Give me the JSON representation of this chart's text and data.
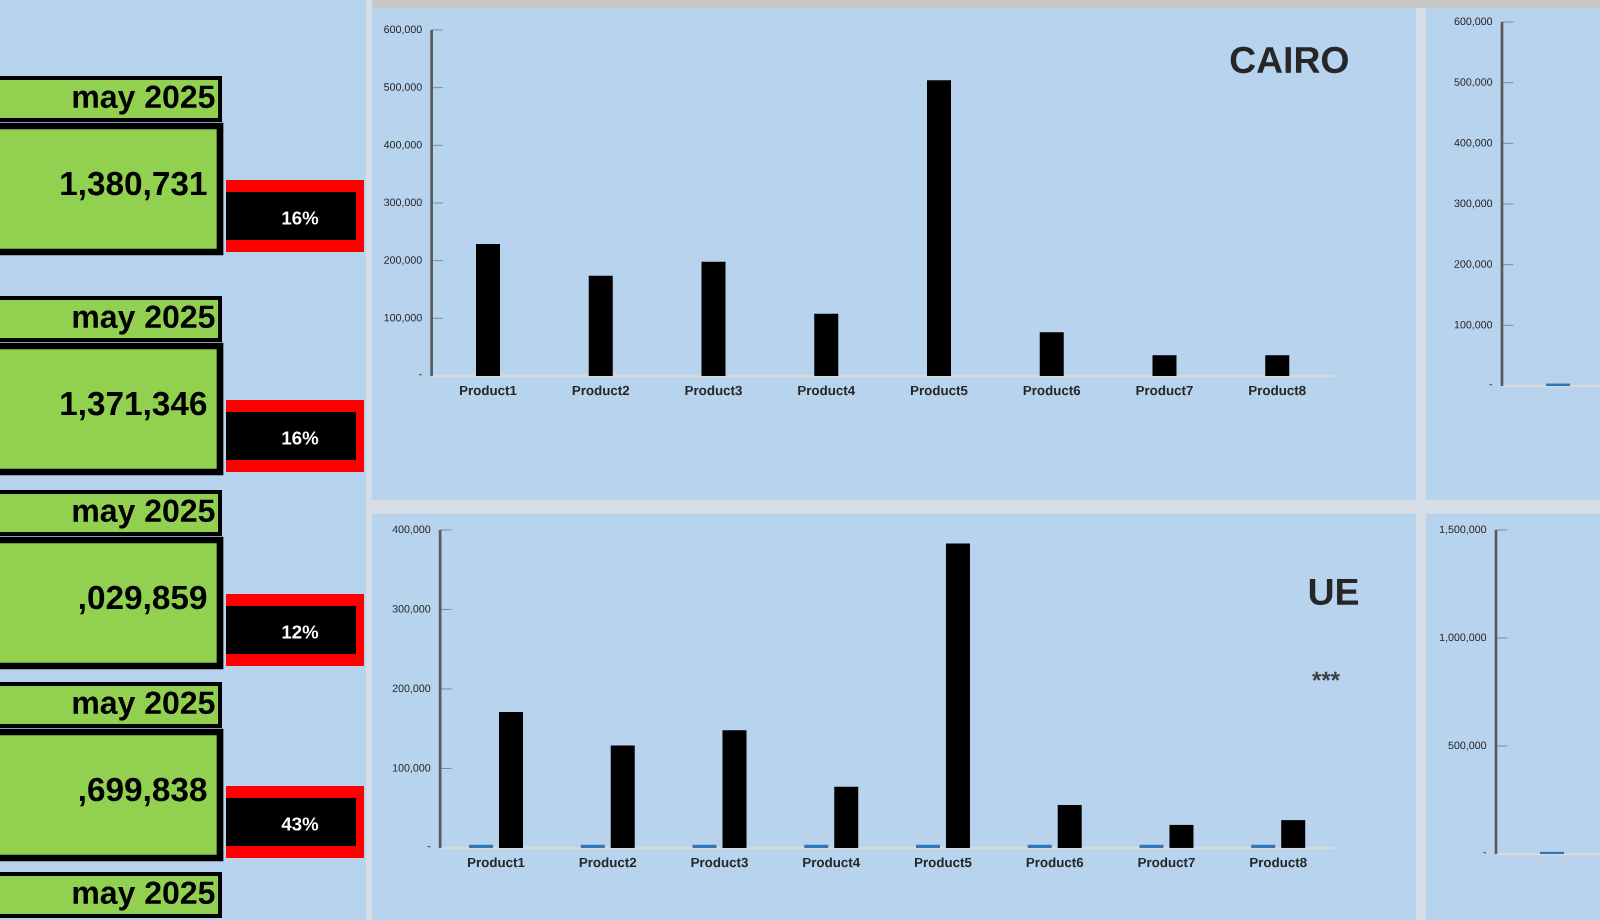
{
  "chart_data": [
    {
      "type": "other",
      "annotations": [
        "may 2025",
        "1,380,731",
        "16%",
        "may 2025",
        "1,371,346",
        "16%",
        "may 2025",
        ",029,859",
        "12%",
        "may 2025",
        ",699,838",
        "43%",
        "may 2025"
      ]
    },
    {
      "type": "bar",
      "title": "CAIRO",
      "categories": [
        "Product1",
        "Product2",
        "Product3",
        "Product4",
        "Product5",
        "Product6",
        "Product7",
        "Product8"
      ],
      "series": [
        {
          "color": "#000000",
          "values": [
            229000,
            174000,
            198000,
            108000,
            513000,
            76000,
            36000,
            36000
          ]
        }
      ],
      "ylim": [
        0,
        600000
      ],
      "yticks": [
        {
          "value": 0,
          "label": "-"
        },
        {
          "value": 100000,
          "label": "100,000"
        },
        {
          "value": 200000,
          "label": "200,000"
        },
        {
          "value": 300000,
          "label": "300,000"
        },
        {
          "value": 400000,
          "label": "400,000"
        },
        {
          "value": 500000,
          "label": "500,000"
        },
        {
          "value": 600000,
          "label": "600,000"
        }
      ]
    },
    {
      "type": "bar",
      "categories": [
        null
      ],
      "series": [
        {
          "color": "#2e75b6",
          "values": [
            4000
          ]
        }
      ],
      "ylim": [
        0,
        600000
      ],
      "yticks": [
        {
          "value": 0,
          "label": "-"
        },
        {
          "value": 100000,
          "label": "100,000"
        },
        {
          "value": 200000,
          "label": "200,000"
        },
        {
          "value": 300000,
          "label": "300,000"
        },
        {
          "value": 400000,
          "label": "400,000"
        },
        {
          "value": 500000,
          "label": "500,000"
        },
        {
          "value": 600000,
          "label": "600,000"
        }
      ]
    },
    {
      "type": "bar",
      "title": "UE",
      "annotations": [
        "***"
      ],
      "categories": [
        "Product1",
        "Product2",
        "Product3",
        "Product4",
        "Product5",
        "Product6",
        "Product7",
        "Product8"
      ],
      "series": [
        {
          "color": "#2e75b6",
          "values": [
            4000,
            4000,
            4000,
            4000,
            4000,
            4000,
            4000,
            4000
          ]
        },
        {
          "color": "#000000",
          "values": [
            171000,
            129000,
            148000,
            77000,
            383000,
            54000,
            29000,
            35000
          ]
        }
      ],
      "ylim": [
        0,
        400000
      ],
      "yticks": [
        {
          "value": 0,
          "label": "-"
        },
        {
          "value": 100000,
          "label": "100,000"
        },
        {
          "value": 200000,
          "label": "200,000"
        },
        {
          "value": 300000,
          "label": "300,000"
        },
        {
          "value": 400000,
          "label": "400,000"
        }
      ]
    },
    {
      "type": "bar",
      "categories": [
        null
      ],
      "series": [
        {
          "color": "#2e75b6",
          "values": [
            10000
          ]
        }
      ],
      "ylim": [
        0,
        1500000
      ],
      "yticks": [
        {
          "value": 0,
          "label": "-"
        },
        {
          "value": 500000,
          "label": "500,000"
        },
        {
          "value": 1000000,
          "label": "1,000,000"
        },
        {
          "value": 1500000,
          "label": "1,500,000"
        }
      ]
    }
  ]
}
